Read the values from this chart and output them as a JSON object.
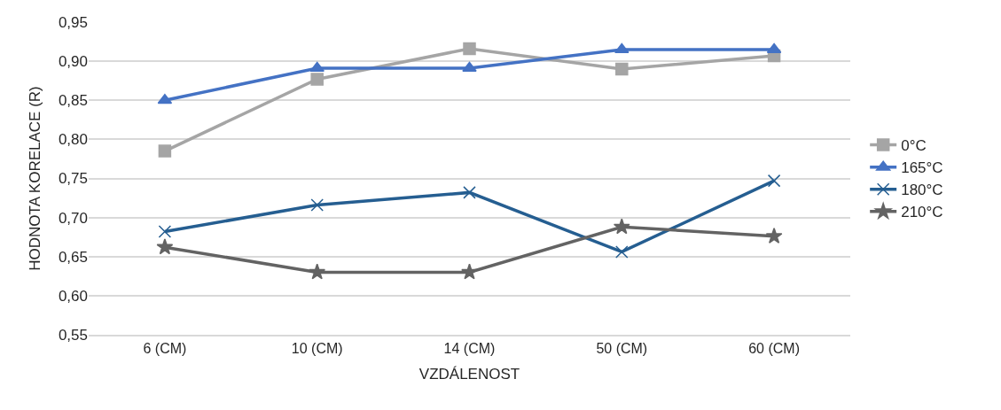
{
  "chart_data": {
    "type": "line",
    "xlabel": "VZDÁLENOST",
    "ylabel": "HODNOTA KORELACE (R)",
    "categories": [
      "6 (CM)",
      "10 (CM)",
      "14 (CM)",
      "50 (CM)",
      "60 (CM)"
    ],
    "series": [
      {
        "name": "0°C",
        "color": "#a5a5a5",
        "marker": "square",
        "values": [
          0.785,
          0.877,
          0.916,
          0.89,
          0.907
        ]
      },
      {
        "name": "165°C",
        "color": "#4472c4",
        "marker": "triangle",
        "values": [
          0.85,
          0.891,
          0.891,
          0.915,
          0.915
        ]
      },
      {
        "name": "180°C",
        "color": "#255e91",
        "marker": "cross",
        "values": [
          0.682,
          0.716,
          0.732,
          0.656,
          0.747
        ]
      },
      {
        "name": "210°C",
        "color": "#636363",
        "marker": "star",
        "values": [
          0.662,
          0.63,
          0.63,
          0.688,
          0.676
        ]
      }
    ],
    "ylim": [
      0.55,
      0.95
    ],
    "yticks": [
      {
        "value": 0.55,
        "label": "0,55"
      },
      {
        "value": 0.6,
        "label": "0,60"
      },
      {
        "value": 0.65,
        "label": "0,65"
      },
      {
        "value": 0.7,
        "label": "0,70"
      },
      {
        "value": 0.75,
        "label": "0,75"
      },
      {
        "value": 0.8,
        "label": "0,80"
      },
      {
        "value": 0.85,
        "label": "0,85"
      },
      {
        "value": 0.9,
        "label": "0,90"
      },
      {
        "value": 0.95,
        "label": "0,95"
      }
    ],
    "grid": "y",
    "legend": "right",
    "line_style": "solid"
  }
}
